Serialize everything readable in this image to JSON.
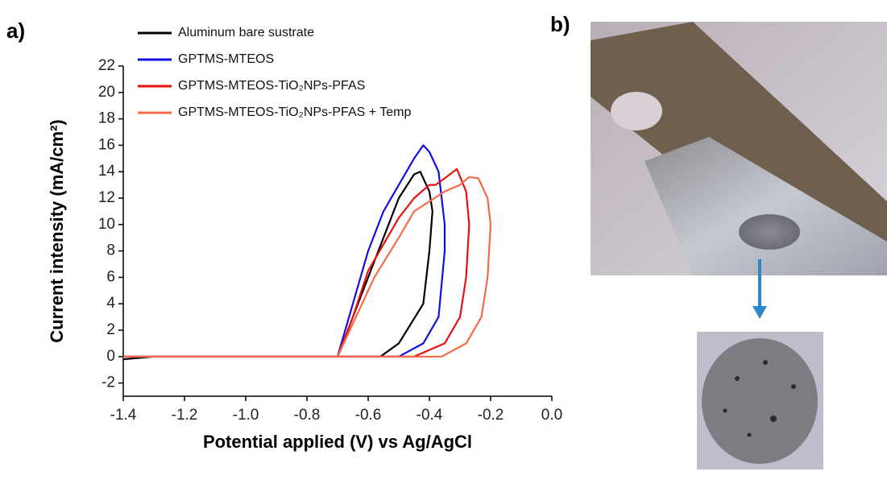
{
  "panel_labels": [
    "a)",
    "b)"
  ],
  "chart_data": {
    "type": "line",
    "xlabel": "Potential applied (V) vs Ag/AgCl",
    "ylabel": "Current intensity (mA/cm²)",
    "xlim": [
      -1.4,
      0
    ],
    "ylim": [
      -3,
      22
    ],
    "xticks": [
      -1.4,
      -1.2,
      {
        "value": -1,
        "label": "-1.0"
      },
      -0.8,
      -0.6,
      -0.4,
      -0.2,
      {
        "value": 0,
        "label": "0.0"
      }
    ],
    "yticks": [
      -2,
      0,
      2,
      4,
      6,
      8,
      10,
      12,
      14,
      16,
      18,
      20,
      22
    ],
    "legend": "upper left",
    "series": [
      {
        "name": "Aluminum bare sustrate",
        "color": "#000000",
        "x": [
          -1.4,
          -1.3,
          -0.56,
          -0.5,
          -0.46,
          -0.42,
          -0.4,
          -0.39,
          -0.4,
          -0.43,
          -0.45,
          -0.5,
          -0.55,
          -0.6,
          -0.65,
          -0.69,
          -0.7
        ],
        "values": [
          -0.2,
          0,
          0,
          1,
          2.5,
          4,
          8,
          11,
          12.5,
          14,
          13.8,
          12,
          9,
          6,
          3,
          0.5,
          0
        ]
      },
      {
        "name": "GPTMS-MTEOS",
        "color": "#1010e0",
        "x": [
          -1.4,
          -0.5,
          -0.42,
          -0.37,
          -0.35,
          -0.35,
          -0.37,
          -0.4,
          -0.42,
          -0.45,
          -0.5,
          -0.55,
          -0.6,
          -0.65,
          -0.7
        ],
        "values": [
          0,
          0,
          1,
          3,
          8,
          10,
          14,
          15.5,
          16,
          15,
          13,
          11,
          8,
          4,
          0
        ]
      },
      {
        "name": "GPTMS-MTEOS-TiO₂NPs-PFAS",
        "color": "#e81010",
        "x": [
          -1.4,
          -0.45,
          -0.35,
          -0.3,
          -0.28,
          -0.27,
          -0.28,
          -0.31,
          -0.35,
          -0.38,
          -0.4,
          -0.45,
          -0.5,
          -0.6,
          -0.65,
          -0.7
        ],
        "values": [
          0,
          0,
          1,
          3,
          6,
          10,
          12.5,
          14.2,
          13.5,
          13,
          13,
          12,
          10.5,
          6.5,
          3,
          0
        ]
      },
      {
        "name": "GPTMS-MTEOS-TiO₂NPs-PFAS + Temp",
        "color": "#f46a4a",
        "x": [
          -1.4,
          -0.36,
          -0.28,
          -0.23,
          -0.21,
          -0.2,
          -0.21,
          -0.24,
          -0.27,
          -0.3,
          -0.35,
          -0.45,
          -0.5,
          -0.58,
          -0.64,
          -0.7
        ],
        "values": [
          0,
          0,
          1,
          3,
          6,
          10,
          12,
          13.5,
          13.6,
          13,
          12.5,
          11,
          9,
          6,
          3,
          0
        ]
      }
    ]
  }
}
